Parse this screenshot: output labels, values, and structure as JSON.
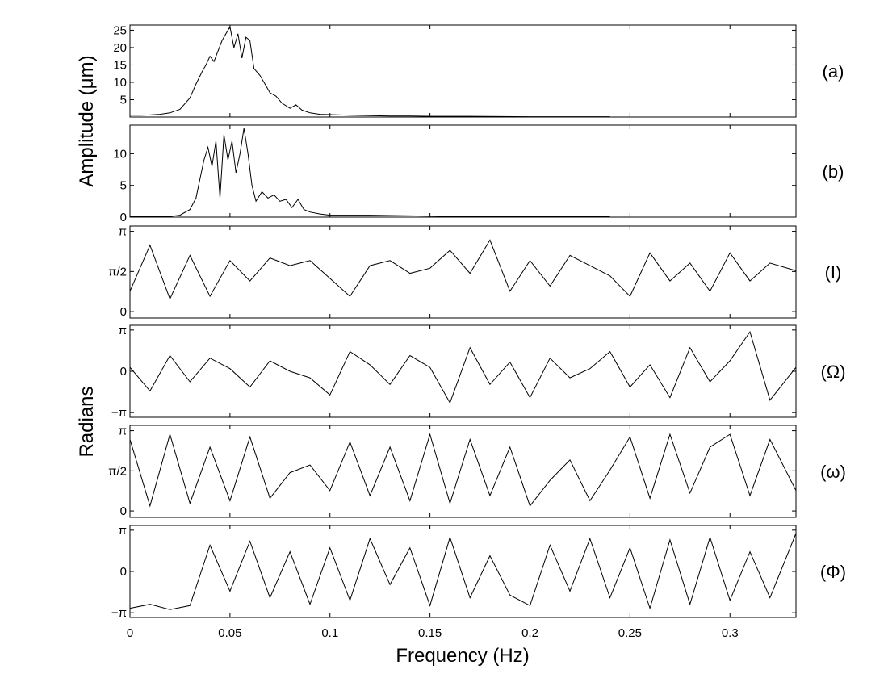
{
  "chart_data": {
    "type": "line",
    "xlabel": "Frequency (Hz)",
    "xlim": [
      0,
      0.333
    ],
    "xticks": [
      0,
      0.05,
      0.1,
      0.15,
      0.2,
      0.25,
      0.3
    ],
    "xtick_labels": [
      "0",
      "0.05",
      "0.1",
      "0.15",
      "0.2",
      "0.25",
      "0.3"
    ],
    "group_ylabels": [
      {
        "text": "Amplitude (μm)",
        "panels": [
          0,
          1
        ]
      },
      {
        "text": "Radians",
        "panels": [
          2,
          3,
          4,
          5
        ]
      }
    ],
    "panels": [
      {
        "label": "(a)",
        "ylim": [
          0,
          26.5
        ],
        "yticks": [
          5,
          10,
          15,
          20,
          25
        ],
        "ytick_labels": [
          "5",
          "10",
          "15",
          "20",
          "25"
        ],
        "x": [
          0,
          0.005,
          0.01,
          0.015,
          0.02,
          0.025,
          0.03,
          0.033,
          0.036,
          0.038,
          0.04,
          0.042,
          0.044,
          0.046,
          0.048,
          0.05,
          0.052,
          0.054,
          0.056,
          0.058,
          0.06,
          0.062,
          0.065,
          0.068,
          0.07,
          0.073,
          0.076,
          0.08,
          0.083,
          0.086,
          0.09,
          0.095,
          0.1,
          0.11,
          0.12,
          0.13,
          0.14,
          0.15,
          0.17,
          0.2,
          0.24
        ],
        "values": [
          0.5,
          0.5,
          0.6,
          0.8,
          1.2,
          2.2,
          5.5,
          9.5,
          13,
          15,
          17.5,
          16,
          19,
          22,
          24,
          26,
          20,
          24,
          17,
          23,
          22,
          14,
          12,
          9,
          7,
          6,
          4,
          2.5,
          3.5,
          2,
          1.2,
          0.8,
          0.7,
          0.5,
          0.4,
          0.3,
          0.3,
          0.2,
          0.2,
          0.1,
          0.1
        ]
      },
      {
        "label": "(b)",
        "ylim": [
          0,
          14.5
        ],
        "yticks": [
          0,
          5,
          10
        ],
        "ytick_labels": [
          "0",
          "5",
          "10"
        ],
        "x": [
          0,
          0.02,
          0.025,
          0.03,
          0.033,
          0.035,
          0.037,
          0.039,
          0.041,
          0.043,
          0.045,
          0.047,
          0.049,
          0.051,
          0.053,
          0.055,
          0.057,
          0.059,
          0.061,
          0.063,
          0.066,
          0.069,
          0.072,
          0.075,
          0.078,
          0.081,
          0.084,
          0.087,
          0.09,
          0.095,
          0.1,
          0.11,
          0.12,
          0.14,
          0.16,
          0.2,
          0.24
        ],
        "values": [
          0.1,
          0.1,
          0.3,
          1.2,
          3,
          6,
          9,
          11,
          8,
          12,
          3,
          13,
          9,
          12,
          7,
          10,
          14,
          10,
          5,
          2.5,
          4,
          3,
          3.5,
          2.5,
          2.8,
          1.5,
          2.8,
          1.2,
          0.8,
          0.5,
          0.3,
          0.3,
          0.3,
          0.2,
          0.1,
          0.1,
          0.1
        ]
      },
      {
        "label": "(I)",
        "ylim": [
          -0.25,
          3.35
        ],
        "yticks": [
          0,
          1.5708,
          3.1416
        ],
        "ytick_labels": [
          "0",
          "π/2",
          "π"
        ],
        "x": [
          0,
          0.01,
          0.02,
          0.03,
          0.04,
          0.05,
          0.06,
          0.07,
          0.08,
          0.09,
          0.1,
          0.11,
          0.12,
          0.13,
          0.14,
          0.15,
          0.16,
          0.17,
          0.18,
          0.19,
          0.2,
          0.21,
          0.22,
          0.23,
          0.24,
          0.25,
          0.26,
          0.27,
          0.28,
          0.29,
          0.3,
          0.31,
          0.32,
          0.333
        ],
        "values": [
          0.8,
          2.6,
          0.5,
          2.2,
          0.6,
          2.0,
          1.2,
          2.1,
          1.8,
          2.0,
          1.3,
          0.6,
          1.8,
          2.0,
          1.5,
          1.7,
          2.4,
          1.5,
          2.8,
          0.8,
          2.0,
          1.0,
          2.2,
          1.8,
          1.4,
          0.6,
          2.3,
          1.2,
          1.9,
          0.8,
          2.3,
          1.2,
          1.9,
          1.6
        ]
      },
      {
        "label": "(Ω)",
        "ylim": [
          -3.5,
          3.5
        ],
        "yticks": [
          -3.1416,
          0,
          3.1416
        ],
        "ytick_labels": [
          "−π",
          "0",
          "π"
        ],
        "x": [
          0,
          0.01,
          0.02,
          0.03,
          0.04,
          0.05,
          0.06,
          0.07,
          0.08,
          0.09,
          0.1,
          0.11,
          0.12,
          0.13,
          0.14,
          0.15,
          0.16,
          0.17,
          0.18,
          0.19,
          0.2,
          0.21,
          0.22,
          0.23,
          0.24,
          0.25,
          0.26,
          0.27,
          0.28,
          0.29,
          0.3,
          0.31,
          0.32,
          0.333
        ],
        "values": [
          0.3,
          -1.5,
          1.2,
          -0.8,
          1.0,
          0.2,
          -1.2,
          0.8,
          0.0,
          -0.5,
          -1.8,
          1.5,
          0.5,
          -1.0,
          1.2,
          0.3,
          -2.4,
          1.8,
          -1.0,
          0.7,
          -2.0,
          1.0,
          -0.5,
          0.2,
          1.5,
          -1.2,
          0.5,
          -2.0,
          1.8,
          -0.8,
          0.8,
          3.0,
          -2.2,
          0.3
        ]
      },
      {
        "label": "(ω)",
        "ylim": [
          -0.25,
          3.35
        ],
        "yticks": [
          0,
          1.5708,
          3.1416
        ],
        "ytick_labels": [
          "0",
          "π/2",
          "π"
        ],
        "x": [
          0,
          0.01,
          0.02,
          0.03,
          0.04,
          0.05,
          0.06,
          0.07,
          0.08,
          0.09,
          0.1,
          0.11,
          0.12,
          0.13,
          0.14,
          0.15,
          0.16,
          0.17,
          0.18,
          0.19,
          0.2,
          0.21,
          0.22,
          0.23,
          0.24,
          0.25,
          0.26,
          0.27,
          0.28,
          0.29,
          0.3,
          0.31,
          0.32,
          0.333
        ],
        "values": [
          2.8,
          0.2,
          3.0,
          0.3,
          2.5,
          0.4,
          2.9,
          0.5,
          1.5,
          1.8,
          0.8,
          2.7,
          0.6,
          2.5,
          0.4,
          3.0,
          0.3,
          2.8,
          0.6,
          2.5,
          0.2,
          1.2,
          2.0,
          0.4,
          1.6,
          2.9,
          0.5,
          3.0,
          0.7,
          2.5,
          3.0,
          0.6,
          2.8,
          0.8
        ]
      },
      {
        "label": "(Φ)",
        "ylim": [
          -3.5,
          3.5
        ],
        "yticks": [
          -3.1416,
          0,
          3.1416
        ],
        "ytick_labels": [
          "−π",
          "0",
          "π"
        ],
        "x": [
          0,
          0.01,
          0.02,
          0.03,
          0.04,
          0.05,
          0.06,
          0.07,
          0.08,
          0.09,
          0.1,
          0.11,
          0.12,
          0.13,
          0.14,
          0.15,
          0.16,
          0.17,
          0.18,
          0.19,
          0.2,
          0.21,
          0.22,
          0.23,
          0.24,
          0.25,
          0.26,
          0.27,
          0.28,
          0.29,
          0.3,
          0.31,
          0.32,
          0.333
        ],
        "values": [
          -2.8,
          -2.5,
          -2.9,
          -2.6,
          2.0,
          -1.5,
          2.3,
          -2.0,
          1.5,
          -2.5,
          1.8,
          -2.2,
          2.5,
          -1.0,
          1.8,
          -2.6,
          2.6,
          -2.0,
          1.2,
          -1.8,
          -2.6,
          2.0,
          -1.5,
          2.5,
          -2.0,
          1.8,
          -2.8,
          2.4,
          -2.5,
          2.6,
          -2.2,
          1.5,
          -2.0,
          2.9
        ]
      }
    ]
  }
}
